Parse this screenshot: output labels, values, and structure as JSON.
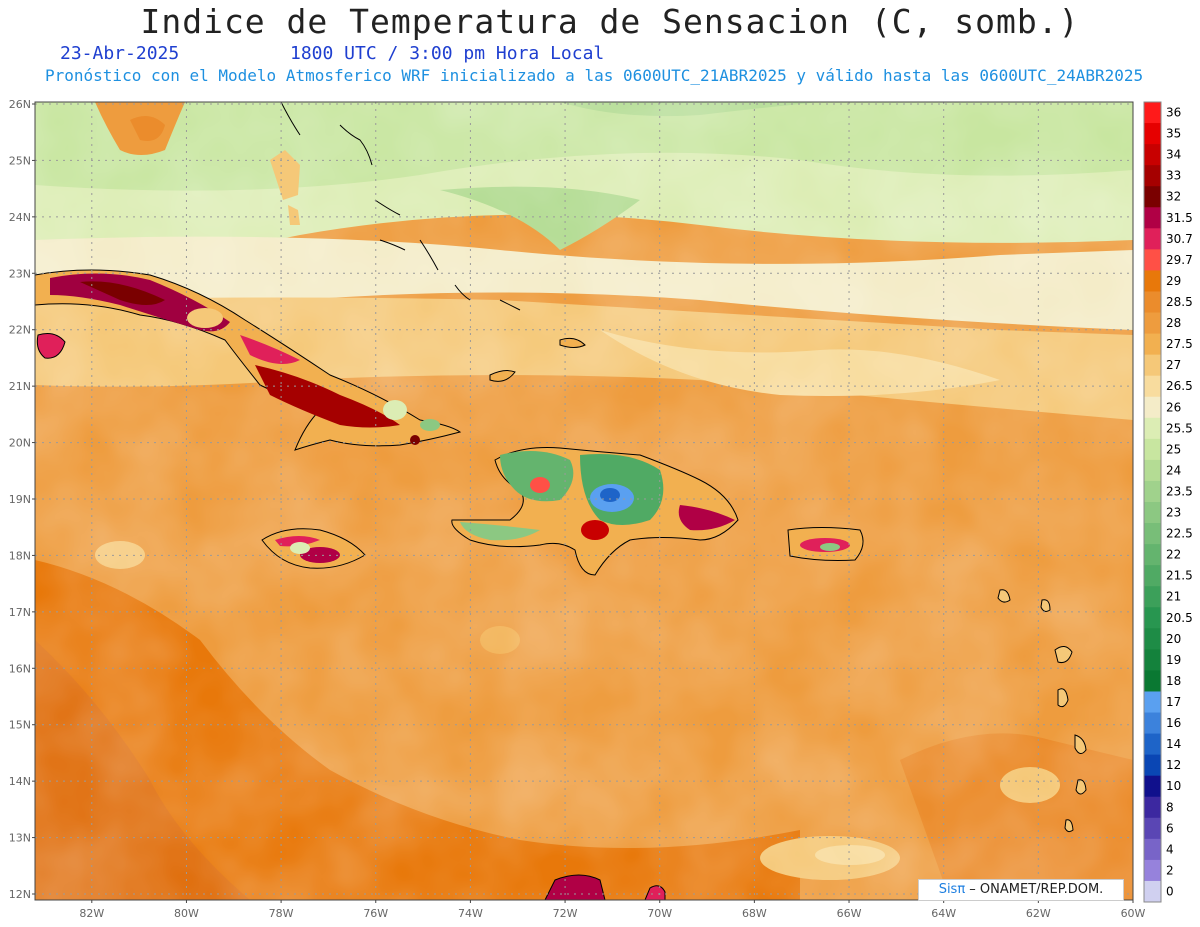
{
  "header": {
    "title": "Indice de Temperatura de Sensacion (C, somb.)",
    "date": "23-Abr-2025",
    "time": "1800 UTC / 3:00 pm Hora Local",
    "model_line": "Pronóstico con el Modelo Atmosferico WRF inicializado a las 0600UTC_21ABR2025 y válido hasta las  0600UTC_24ABR2025"
  },
  "map": {
    "lat_labels": [
      "26N",
      "25N",
      "24N",
      "23N",
      "22N",
      "21N",
      "20N",
      "19N",
      "18N",
      "17N",
      "16N",
      "15N",
      "14N",
      "13N",
      "12N"
    ],
    "lon_labels": [
      "82W",
      "80W",
      "78W",
      "76W",
      "74W",
      "72W",
      "70W",
      "68W",
      "66W",
      "64W",
      "62W",
      "60W"
    ],
    "lat_range": [
      12,
      26
    ],
    "lon_range": [
      -83.2,
      -60
    ],
    "grid": true
  },
  "colorbar": {
    "labels": [
      "36",
      "35",
      "34",
      "33",
      "32",
      "31.5",
      "30.7",
      "29.7",
      "29",
      "28.5",
      "28",
      "27.5",
      "27",
      "26.5",
      "26",
      "25.5",
      "25",
      "24",
      "23.5",
      "23",
      "22.5",
      "22",
      "21.5",
      "21",
      "20.5",
      "20",
      "19",
      "18",
      "17",
      "16",
      "14",
      "12",
      "10",
      "8",
      "6",
      "4",
      "2",
      "0"
    ],
    "colors": [
      "#ff1a1a",
      "#e60000",
      "#c80000",
      "#a50000",
      "#7a0000",
      "#b00045",
      "#e0205a",
      "#ff5046",
      "#e8780a",
      "#eb8c2c",
      "#ee9c3e",
      "#f2b050",
      "#f5c878",
      "#f8dc9e",
      "#f4ecc8",
      "#dcedb4",
      "#c8e6a0",
      "#b4dc94",
      "#a0d28c",
      "#8cc882",
      "#78be78",
      "#64b46e",
      "#50aa64",
      "#3ca05a",
      "#289650",
      "#1e8c46",
      "#14823c",
      "#0a7832",
      "#5aa0f0",
      "#3c82dc",
      "#1e64c8",
      "#0a46b4",
      "#10108c",
      "#3c28a0",
      "#5a46b4",
      "#7864c8",
      "#9682dc",
      "#d0d0f0"
    ]
  },
  "credit": {
    "brand": "Sisπ",
    "org": " – ONAMET/REP.DOM."
  }
}
